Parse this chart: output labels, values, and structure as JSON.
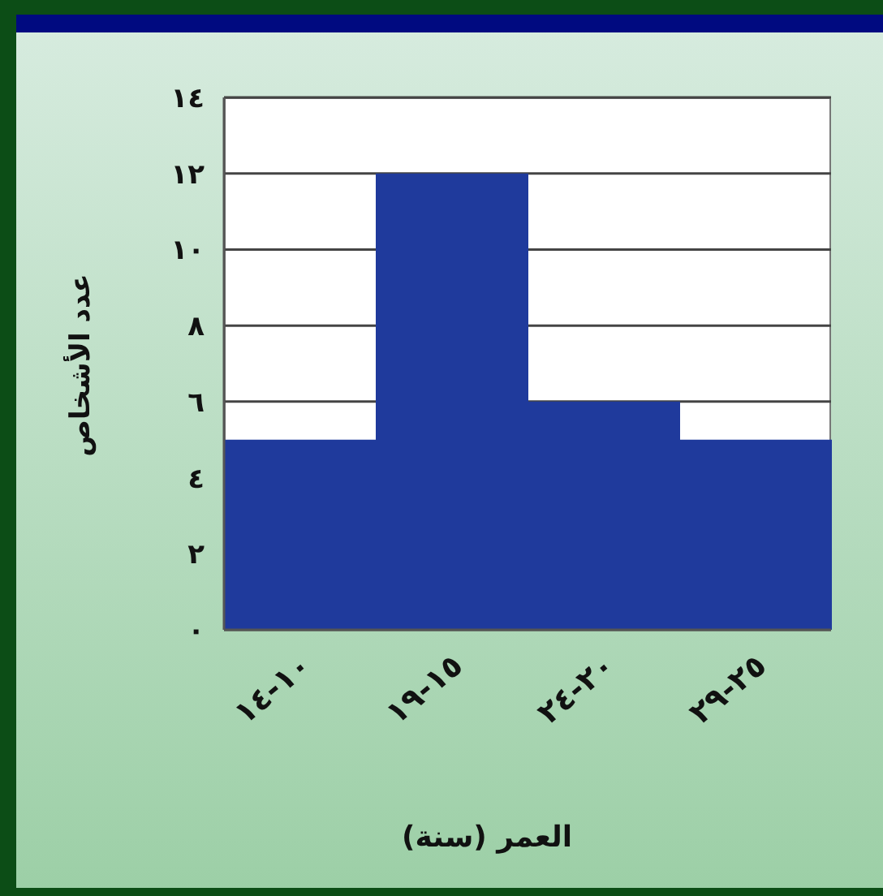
{
  "chart_data": {
    "type": "bar",
    "categories": [
      "١٠-١٤",
      "١٥-١٩",
      "٢٠-٢٤",
      "٢٥-٢٩"
    ],
    "values": [
      5,
      12,
      6,
      5
    ],
    "color": "#1f3a9c",
    "xlabel": "العمر (سنة)",
    "ylabel": "عدد الأشخاص",
    "ylim": [
      0,
      14
    ],
    "yticks": [
      {
        "value": 0,
        "label": "٠"
      },
      {
        "value": 2,
        "label": "٢"
      },
      {
        "value": 4,
        "label": "٤"
      },
      {
        "value": 6,
        "label": "٦"
      },
      {
        "value": 8,
        "label": "٨"
      },
      {
        "value": 10,
        "label": "١٠"
      },
      {
        "value": 12,
        "label": "١٢"
      },
      {
        "value": 14,
        "label": "١٤"
      }
    ],
    "grid": "y"
  }
}
